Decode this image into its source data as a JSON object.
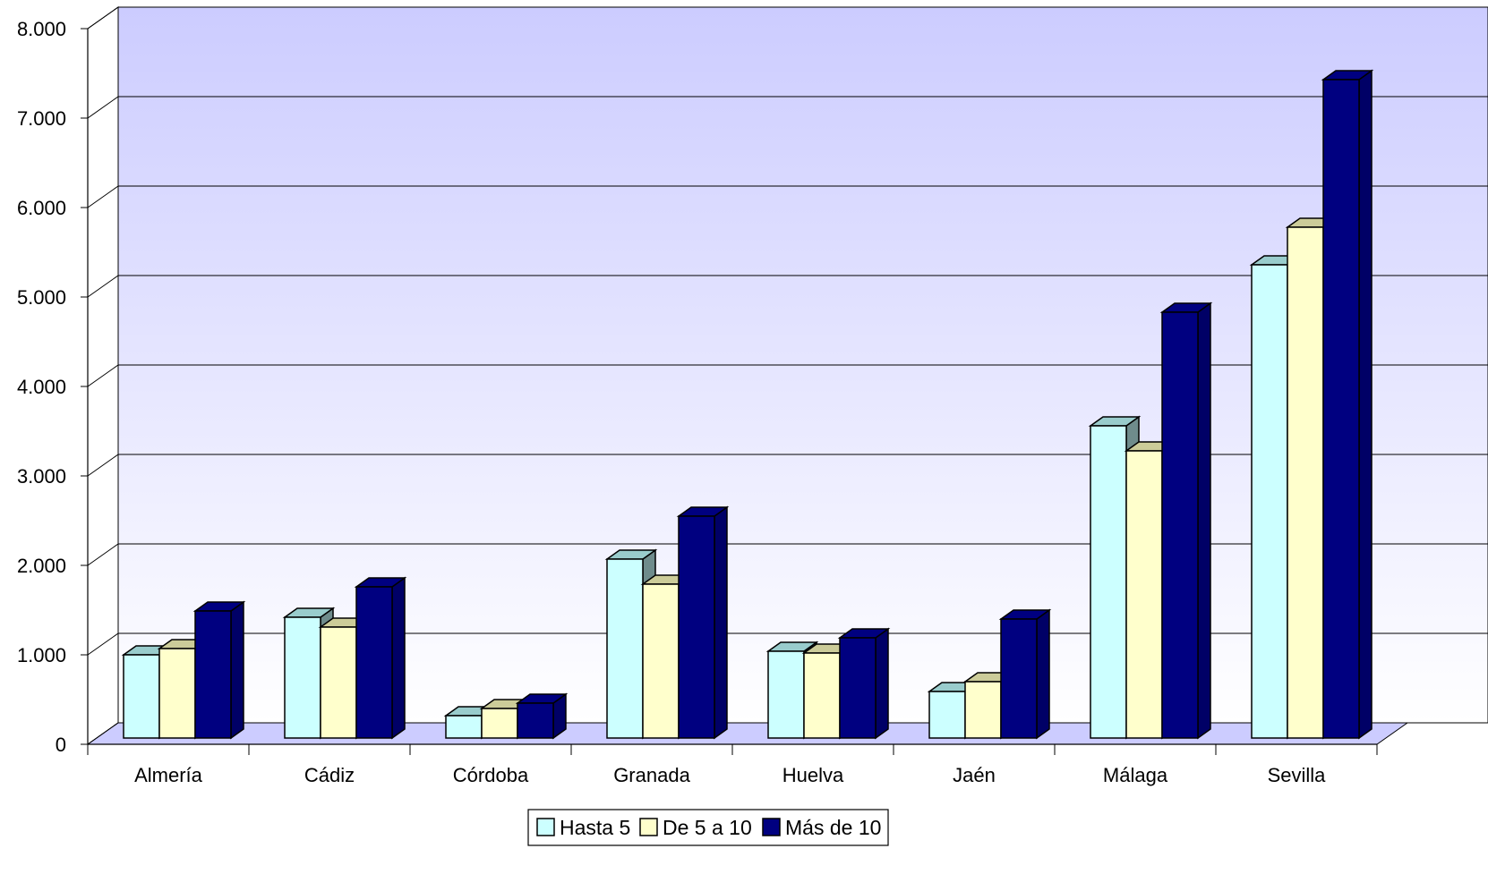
{
  "chart_data": {
    "type": "bar",
    "title": "",
    "xlabel": "",
    "ylabel": "",
    "categories": [
      "Almería",
      "Cádiz",
      "Córdoba",
      "Granada",
      "Huelva",
      "Jaén",
      "Málaga",
      "Sevilla"
    ],
    "series": [
      {
        "name": "Hasta 5",
        "values": [
          930,
          1350,
          250,
          2000,
          970,
          520,
          3490,
          5290
        ],
        "color": "#ccffff",
        "top_color": "#99cccc",
        "side_color": "#6f8c8c"
      },
      {
        "name": "De 5 a 10",
        "values": [
          1000,
          1240,
          330,
          1720,
          950,
          630,
          3210,
          5710
        ],
        "color": "#ffffcc",
        "top_color": "#cccc99",
        "side_color": "#8c8c6f"
      },
      {
        "name": "Más de 10",
        "values": [
          1420,
          1690,
          390,
          2480,
          1120,
          1330,
          4760,
          7360
        ],
        "color": "#000080",
        "top_color": "#000080",
        "side_color": "#000066"
      }
    ],
    "y_ticks": [
      "0",
      "1.000",
      "2.000",
      "3.000",
      "4.000",
      "5.000",
      "6.000",
      "7.000",
      "8.000"
    ],
    "ylim": [
      0,
      8000
    ],
    "grid": true,
    "legend_position": "bottom-center",
    "background_top": "#ccccff",
    "background_bottom": "#ffffff",
    "floor_color": "#ccccff"
  }
}
